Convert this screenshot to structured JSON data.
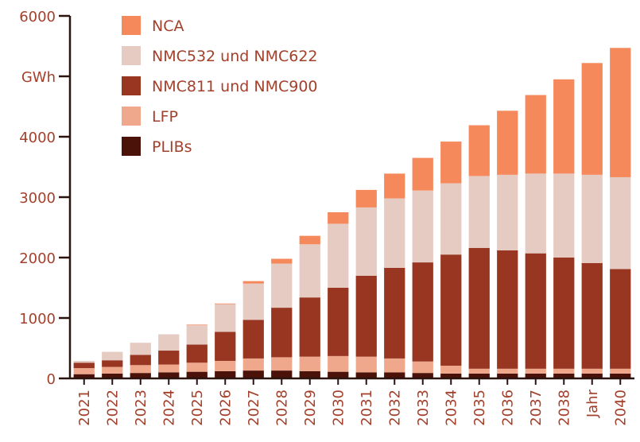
{
  "chart_data": {
    "type": "bar",
    "stacked": true,
    "title": "",
    "xlabel": "",
    "ylabel": "GWh",
    "ylim": [
      0,
      6000
    ],
    "y_ticks": [
      0,
      1000,
      2000,
      3000,
      4000,
      6000
    ],
    "grid": false,
    "legend_position": "top-left",
    "categories": [
      "2021",
      "2022",
      "2023",
      "2024",
      "2025",
      "2026",
      "2027",
      "2028",
      "2029",
      "2030",
      "2031",
      "2032",
      "2033",
      "2034",
      "2035",
      "2036",
      "2037",
      "2038",
      "Jahr",
      "2040"
    ],
    "series": [
      {
        "name": "PLIBs",
        "color": "#4a1208",
        "values": [
          70,
          80,
          90,
          100,
          110,
          120,
          130,
          130,
          120,
          110,
          100,
          100,
          90,
          80,
          80,
          80,
          80,
          80,
          80,
          80
        ]
      },
      {
        "name": "LFP",
        "color": "#f0a88c",
        "values": [
          100,
          110,
          130,
          130,
          150,
          170,
          200,
          220,
          240,
          260,
          260,
          230,
          190,
          130,
          80,
          80,
          80,
          80,
          80,
          80
        ]
      },
      {
        "name": "NMC811 und NMC900",
        "color": "#983622",
        "values": [
          90,
          110,
          170,
          230,
          300,
          480,
          640,
          820,
          980,
          1130,
          1340,
          1500,
          1640,
          1840,
          2000,
          1960,
          1910,
          1840,
          1750,
          1650
        ]
      },
      {
        "name": "NMC532 und NMC622",
        "color": "#e5cbc2",
        "values": [
          30,
          140,
          200,
          270,
          320,
          460,
          600,
          730,
          880,
          1060,
          1130,
          1150,
          1190,
          1180,
          1190,
          1250,
          1320,
          1390,
          1460,
          1520
        ]
      },
      {
        "name": "NCA",
        "color": "#f5895c",
        "values": [
          0,
          0,
          0,
          0,
          10,
          10,
          40,
          80,
          140,
          190,
          290,
          410,
          540,
          690,
          840,
          1060,
          1300,
          1560,
          1850,
          2140
        ]
      }
    ],
    "legend_order": [
      "NCA",
      "NMC532 und NMC622",
      "NMC811 und NMC900",
      "LFP",
      "PLIBs"
    ]
  }
}
